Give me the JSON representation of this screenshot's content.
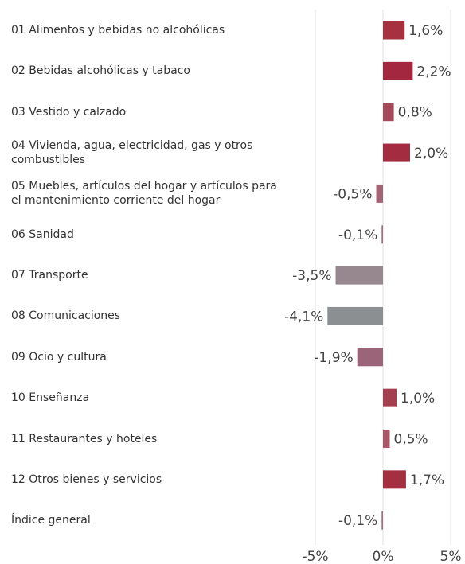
{
  "chart_data": {
    "type": "bar",
    "orientation": "horizontal",
    "categories": [
      "01 Alimentos y bebidas no alcohólicas",
      "02 Bebidas alcohólicas y tabaco",
      "03 Vestido y calzado",
      "04 Vivienda, agua, electricidad, gas y otros combustibles",
      "05 Muebles, artículos del hogar y artículos para el mantenimiento corriente del hogar",
      "06 Sanidad",
      "07 Transporte",
      "08 Comunicaciones",
      "09 Ocio y cultura",
      "10 Enseñanza",
      "11 Restaurantes y hoteles",
      "12 Otros bienes y servicios",
      "Índice general"
    ],
    "values": [
      1.6,
      2.2,
      0.8,
      2.0,
      -0.5,
      -0.1,
      -3.5,
      -4.1,
      -1.9,
      1.0,
      0.5,
      1.7,
      -0.1
    ],
    "value_labels": [
      "1,6%",
      "2,2%",
      "0,8%",
      "2,0%",
      "-0,5%",
      "-0,1%",
      "-3,5%",
      "-4,1%",
      "-1,9%",
      "1,0%",
      "0,5%",
      "1,7%",
      "-0,1%"
    ],
    "colors": [
      "#a6323f",
      "#a3283f",
      "#a54a5a",
      "#a42c40",
      "#a06476",
      "#a36f80",
      "#978890",
      "#8c8f92",
      "#9c6478",
      "#a3404f",
      "#a85869",
      "#a42f40",
      "#a36f80"
    ],
    "xlim": [
      -5,
      5
    ],
    "xticks": [
      {
        "value": -5,
        "label": "-5%"
      },
      {
        "value": 0,
        "label": "0%"
      },
      {
        "value": 5,
        "label": "5%"
      }
    ],
    "grid": true
  }
}
